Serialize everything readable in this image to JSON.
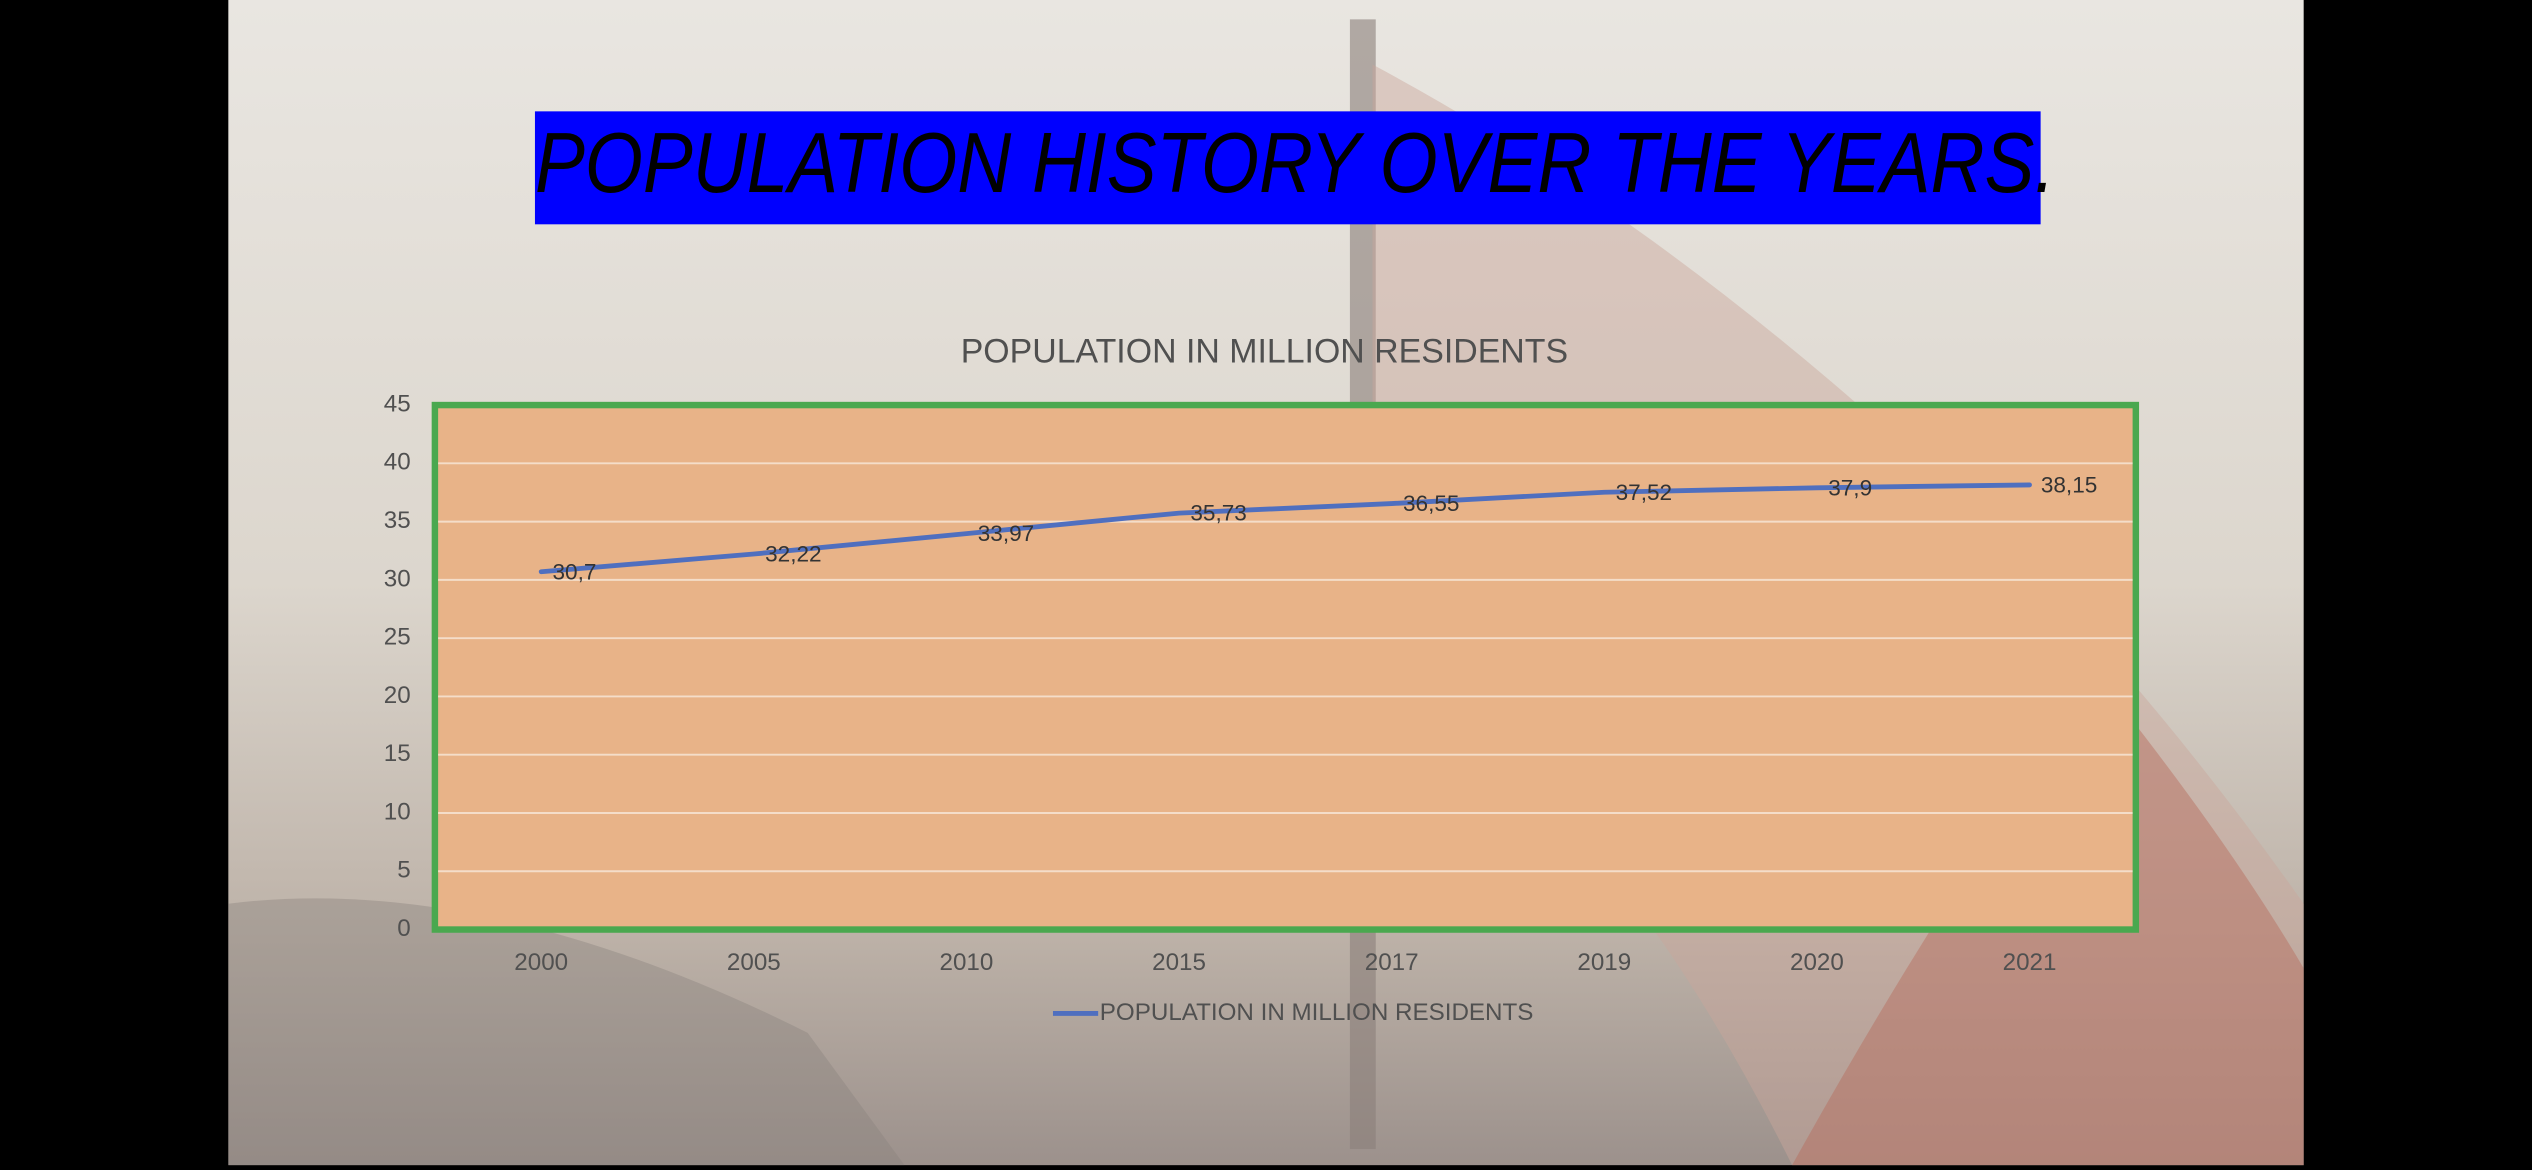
{
  "slide": {
    "title": "POPULATION HISTORY OVER THE YEARS."
  },
  "chart_data": {
    "type": "line",
    "title": "POPULATION IN MILLION RESIDENTS",
    "categories": [
      "2000",
      "2005",
      "2010",
      "2015",
      "2017",
      "2019",
      "2020",
      "2021"
    ],
    "series": [
      {
        "name": "POPULATION IN MILLION RESIDENTS",
        "color": "#4f6fbf",
        "values": [
          30.7,
          32.22,
          33.97,
          35.73,
          36.55,
          37.52,
          37.9,
          38.15
        ],
        "value_labels": [
          "30,7",
          "32,22",
          "33,97",
          "35,73",
          "36,55",
          "37,52",
          "37,9",
          "38,15"
        ]
      }
    ],
    "ylim": [
      0,
      45
    ],
    "yticks": [
      0,
      5,
      10,
      15,
      20,
      25,
      30,
      35,
      40,
      45
    ],
    "grid": true,
    "legend": "bottom"
  }
}
